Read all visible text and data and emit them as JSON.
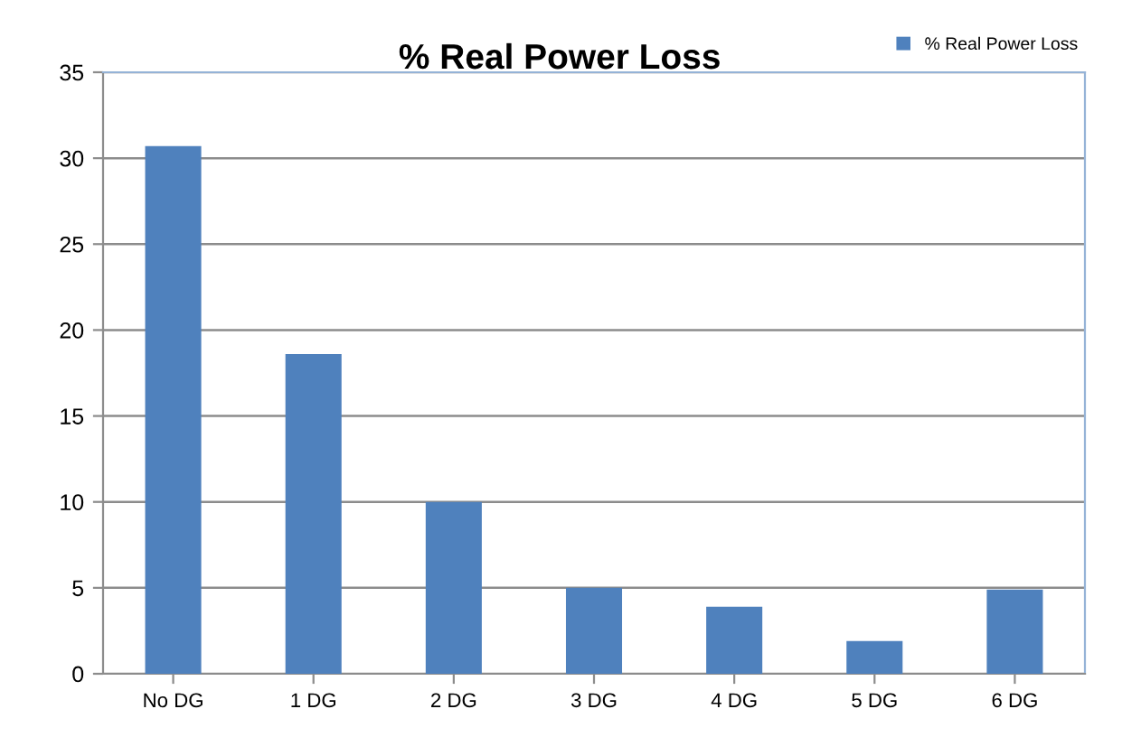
{
  "chart_data": {
    "type": "bar",
    "title": "% Real Power Loss",
    "categories": [
      "No DG",
      "1 DG",
      "2 DG",
      "3 DG",
      "4 DG",
      "5 DG",
      "6 DG"
    ],
    "series": [
      {
        "name": "% Real Power Loss",
        "color": "#4f81bd",
        "values": [
          30.7,
          18.6,
          10,
          5,
          3.9,
          1.9,
          4.9
        ]
      }
    ],
    "ylim": [
      0,
      35
    ],
    "yticks": [
      0,
      5,
      10,
      15,
      20,
      25,
      30,
      35
    ],
    "grid": "y",
    "legend": "top right"
  }
}
